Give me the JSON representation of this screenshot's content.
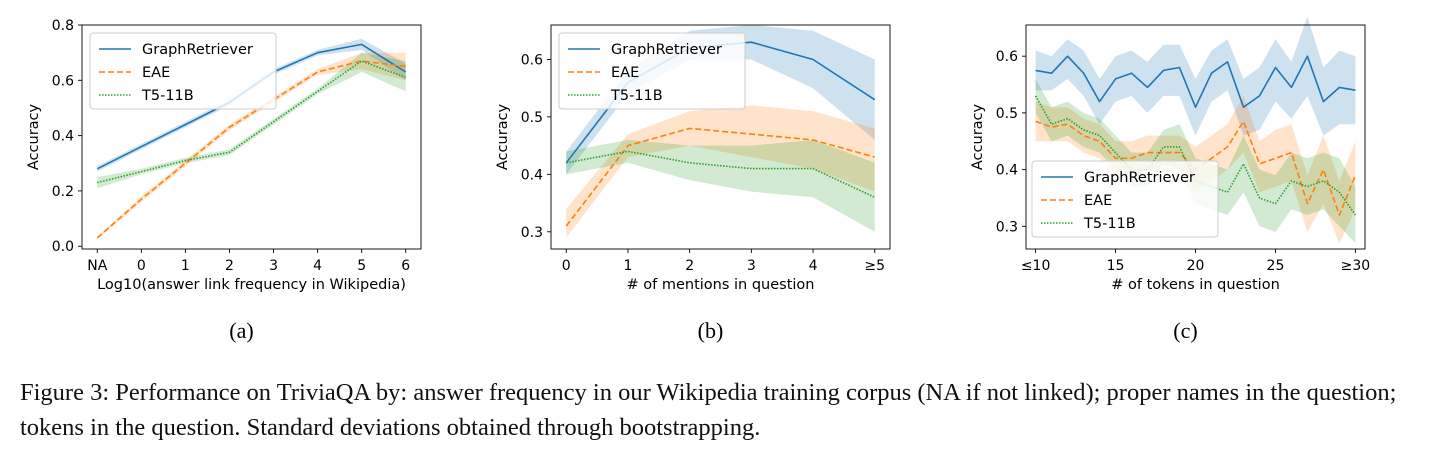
{
  "figure": {
    "caption_lead": "Figure 3:",
    "caption": "Performance on TriviaQA by: answer frequency in our Wikipedia training corpus (NA if not linked); proper names in the question; tokens in the question. Standard deviations obtained through bootstrapping."
  },
  "colors": {
    "graph": "#1f77b4",
    "eae": "#ff7f0e",
    "t5": "#2ca02c"
  },
  "chart_data": [
    {
      "type": "line",
      "panel_label": "(a)",
      "xlabel": "Log10(answer link frequency in Wikipedia)",
      "ylabel": "Accuracy",
      "categories": [
        "NA",
        "0",
        "1",
        "2",
        "3",
        "4",
        "5",
        "6"
      ],
      "ylim": [
        -0.01,
        0.8
      ],
      "yticks": [
        "0.0",
        "0.2",
        "0.4",
        "0.6",
        "0.8"
      ],
      "ytick_values": [
        0.0,
        0.2,
        0.4,
        0.6,
        0.8
      ],
      "legend": "top-left",
      "series": [
        {
          "name": "GraphRetriever",
          "style": "solid",
          "color_key": "graph",
          "values": [
            0.28,
            0.36,
            0.44,
            0.52,
            0.63,
            0.7,
            0.73,
            0.63
          ],
          "lower": [
            0.27,
            0.35,
            0.43,
            0.51,
            0.62,
            0.69,
            0.71,
            0.6
          ],
          "upper": [
            0.29,
            0.37,
            0.45,
            0.53,
            0.64,
            0.71,
            0.75,
            0.66
          ]
        },
        {
          "name": "EAE",
          "style": "dashed",
          "color_key": "eae",
          "values": [
            0.03,
            0.17,
            0.3,
            0.43,
            0.53,
            0.63,
            0.67,
            0.65
          ],
          "lower": [
            0.025,
            0.16,
            0.29,
            0.42,
            0.52,
            0.62,
            0.64,
            0.6
          ],
          "upper": [
            0.035,
            0.18,
            0.31,
            0.44,
            0.54,
            0.64,
            0.7,
            0.7
          ]
        },
        {
          "name": "T5-11B",
          "style": "dotted",
          "color_key": "t5",
          "values": [
            0.23,
            0.27,
            0.31,
            0.34,
            0.45,
            0.56,
            0.67,
            0.61
          ],
          "lower": [
            0.21,
            0.26,
            0.3,
            0.33,
            0.44,
            0.55,
            0.63,
            0.56
          ],
          "upper": [
            0.25,
            0.28,
            0.32,
            0.35,
            0.46,
            0.57,
            0.7,
            0.67
          ]
        }
      ]
    },
    {
      "type": "line",
      "panel_label": "(b)",
      "xlabel": "# of mentions in question",
      "ylabel": "Accuracy",
      "categories": [
        "0",
        "1",
        "2",
        "3",
        "4",
        "≥5"
      ],
      "ylim": [
        0.27,
        0.66
      ],
      "yticks": [
        "0.3",
        "0.4",
        "0.5",
        "0.6"
      ],
      "ytick_values": [
        0.3,
        0.4,
        0.5,
        0.6
      ],
      "legend": "top-left",
      "series": [
        {
          "name": "GraphRetriever",
          "style": "solid",
          "color_key": "graph",
          "values": [
            0.42,
            0.56,
            0.62,
            0.63,
            0.6,
            0.53
          ],
          "lower": [
            0.4,
            0.54,
            0.6,
            0.6,
            0.55,
            0.46
          ],
          "upper": [
            0.44,
            0.58,
            0.65,
            0.66,
            0.65,
            0.6
          ]
        },
        {
          "name": "EAE",
          "style": "dashed",
          "color_key": "eae",
          "values": [
            0.31,
            0.45,
            0.48,
            0.47,
            0.46,
            0.43
          ],
          "lower": [
            0.29,
            0.43,
            0.45,
            0.43,
            0.41,
            0.37
          ],
          "upper": [
            0.34,
            0.47,
            0.51,
            0.52,
            0.51,
            0.48
          ]
        },
        {
          "name": "T5-11B",
          "style": "dotted",
          "color_key": "t5",
          "values": [
            0.42,
            0.44,
            0.42,
            0.41,
            0.41,
            0.36
          ],
          "lower": [
            0.4,
            0.42,
            0.39,
            0.37,
            0.36,
            0.3
          ],
          "upper": [
            0.44,
            0.46,
            0.45,
            0.45,
            0.46,
            0.42
          ]
        }
      ]
    },
    {
      "type": "line",
      "panel_label": "(c)",
      "xlabel": "# of tokens in question",
      "ylabel": "Accuracy",
      "categories": [
        "≤10",
        "15",
        "20",
        "25",
        "≥30"
      ],
      "category_positions": [
        10,
        15,
        20,
        25,
        30
      ],
      "xlim": [
        9.4,
        30.6
      ],
      "ylim": [
        0.26,
        0.655
      ],
      "yticks": [
        "0.3",
        "0.4",
        "0.5",
        "0.6"
      ],
      "ytick_values": [
        0.3,
        0.4,
        0.5,
        0.6
      ],
      "legend": "bottom-left",
      "x": [
        10,
        11,
        12,
        13,
        14,
        15,
        16,
        17,
        18,
        19,
        20,
        21,
        22,
        23,
        24,
        25,
        26,
        27,
        28,
        29,
        30
      ],
      "series": [
        {
          "name": "GraphRetriever",
          "style": "solid",
          "color_key": "graph",
          "values": [
            0.575,
            0.57,
            0.6,
            0.57,
            0.52,
            0.56,
            0.57,
            0.545,
            0.575,
            0.58,
            0.51,
            0.57,
            0.59,
            0.51,
            0.53,
            0.58,
            0.545,
            0.6,
            0.52,
            0.545,
            0.54
          ],
          "lower": [
            0.54,
            0.54,
            0.56,
            0.53,
            0.48,
            0.52,
            0.53,
            0.5,
            0.53,
            0.53,
            0.46,
            0.52,
            0.54,
            0.46,
            0.47,
            0.52,
            0.49,
            0.53,
            0.46,
            0.48,
            0.48
          ],
          "upper": [
            0.61,
            0.6,
            0.63,
            0.61,
            0.56,
            0.6,
            0.61,
            0.59,
            0.62,
            0.62,
            0.56,
            0.61,
            0.63,
            0.56,
            0.58,
            0.63,
            0.59,
            0.67,
            0.58,
            0.61,
            0.6
          ]
        },
        {
          "name": "EAE",
          "style": "dashed",
          "color_key": "eae",
          "values": [
            0.485,
            0.475,
            0.48,
            0.46,
            0.45,
            0.42,
            0.42,
            0.43,
            0.43,
            0.43,
            0.4,
            0.42,
            0.44,
            0.485,
            0.41,
            0.42,
            0.43,
            0.34,
            0.4,
            0.32,
            0.39
          ],
          "lower": [
            0.45,
            0.45,
            0.45,
            0.43,
            0.42,
            0.39,
            0.39,
            0.4,
            0.4,
            0.4,
            0.36,
            0.38,
            0.4,
            0.43,
            0.36,
            0.37,
            0.38,
            0.29,
            0.34,
            0.27,
            0.33
          ],
          "upper": [
            0.52,
            0.51,
            0.51,
            0.49,
            0.48,
            0.45,
            0.45,
            0.46,
            0.46,
            0.46,
            0.44,
            0.46,
            0.48,
            0.53,
            0.45,
            0.47,
            0.48,
            0.39,
            0.46,
            0.38,
            0.45
          ]
        },
        {
          "name": "T5-11B",
          "style": "dotted",
          "color_key": "t5",
          "values": [
            0.53,
            0.48,
            0.49,
            0.47,
            0.46,
            0.43,
            0.4,
            0.4,
            0.44,
            0.44,
            0.38,
            0.37,
            0.36,
            0.41,
            0.35,
            0.34,
            0.38,
            0.37,
            0.38,
            0.36,
            0.32
          ],
          "lower": [
            0.5,
            0.45,
            0.46,
            0.44,
            0.43,
            0.4,
            0.37,
            0.37,
            0.41,
            0.4,
            0.34,
            0.33,
            0.32,
            0.36,
            0.3,
            0.29,
            0.33,
            0.32,
            0.33,
            0.3,
            0.27
          ],
          "upper": [
            0.56,
            0.51,
            0.52,
            0.5,
            0.49,
            0.46,
            0.43,
            0.43,
            0.47,
            0.48,
            0.42,
            0.41,
            0.4,
            0.46,
            0.4,
            0.39,
            0.43,
            0.42,
            0.43,
            0.42,
            0.37
          ]
        }
      ]
    }
  ]
}
